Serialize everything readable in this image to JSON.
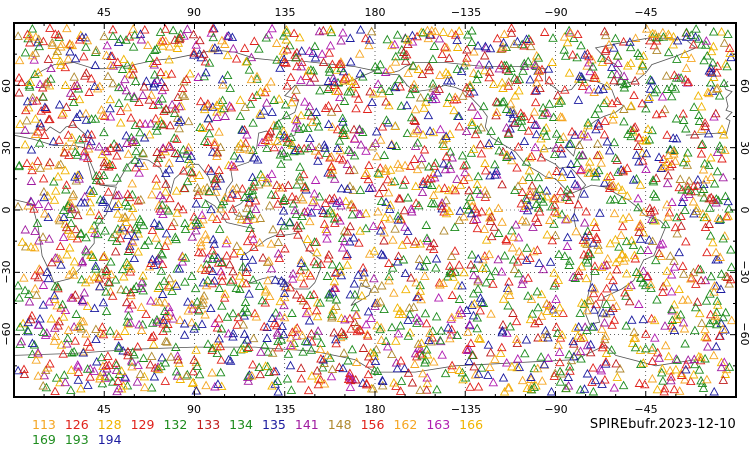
{
  "stamp": "SPIREbufr.2023-12-10",
  "top_lon_labels": [
    "45",
    "90",
    "135",
    "180",
    "−135",
    "−90",
    "−45"
  ],
  "bottom_lon_labels": [
    "45",
    "90",
    "135",
    "180",
    "−135",
    "−90",
    "−45"
  ],
  "left_lat_labels": [
    "60",
    "30",
    "0",
    "−30",
    "−60"
  ],
  "right_lat_labels": [
    "60",
    "30",
    "0",
    "−30",
    "−60"
  ],
  "legend": {
    "row1": [
      {
        "code": "113",
        "color": "#f5a623"
      },
      {
        "code": "126",
        "color": "#e0221c"
      },
      {
        "code": "128",
        "color": "#f0b400"
      },
      {
        "code": "129",
        "color": "#e0221c"
      },
      {
        "code": "132",
        "color": "#1e8c1e"
      },
      {
        "code": "133",
        "color": "#c01c1c"
      },
      {
        "code": "134",
        "color": "#1e8c1e"
      },
      {
        "code": "135",
        "color": "#1c1ca0"
      },
      {
        "code": "141",
        "color": "#a01ca0"
      },
      {
        "code": "148",
        "color": "#b08a30"
      },
      {
        "code": "156",
        "color": "#e0221c"
      },
      {
        "code": "162",
        "color": "#f5a623"
      },
      {
        "code": "163",
        "color": "#b01cb0"
      },
      {
        "code": "166",
        "color": "#f0b400"
      }
    ],
    "row2": [
      {
        "code": "169",
        "color": "#1e8c1e"
      },
      {
        "code": "193",
        "color": "#1e8c1e"
      },
      {
        "code": "194",
        "color": "#1c1ca0"
      }
    ]
  },
  "marker_symbol": "triangle",
  "grid": "dotted",
  "colors": {
    "frame": "#000000",
    "coast": "#555555",
    "grid": "#000000"
  }
}
